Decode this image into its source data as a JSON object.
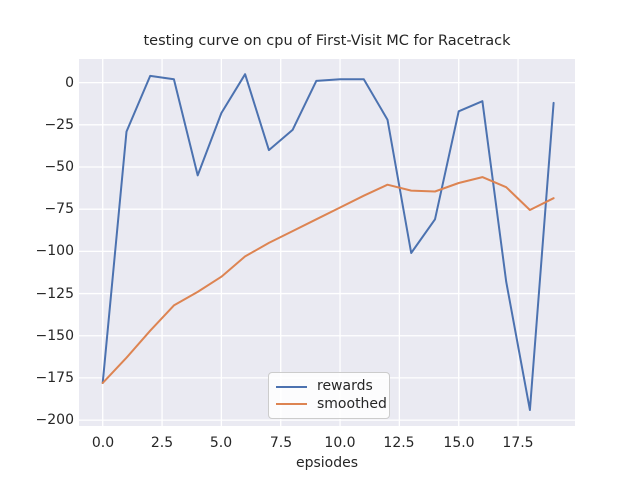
{
  "chart_data": {
    "type": "line",
    "title": "testing curve on cpu of First-Visit MC for Racetrack",
    "xlabel": "epsiodes",
    "ylabel": "",
    "x": [
      0,
      1,
      2,
      3,
      4,
      5,
      6,
      7,
      8,
      9,
      10,
      11,
      12,
      13,
      14,
      15,
      16,
      17,
      18,
      19
    ],
    "series": [
      {
        "name": "rewards",
        "color": "#4C72B0",
        "values": [
          -178,
          -29,
          4,
          2,
          -55,
          -18,
          5,
          -40,
          -28,
          1,
          2,
          2,
          -22,
          -101,
          -81,
          -17,
          -11,
          -118,
          -194,
          -12
        ]
      },
      {
        "name": "smoothed",
        "color": "#DD8452",
        "values": [
          -178,
          -163,
          -147,
          -132,
          -124,
          -115,
          -103,
          -95,
          -88,
          -81,
          -74,
          -67,
          -60.5,
          -64,
          -64.5,
          -59.5,
          -56,
          -62,
          -75.5,
          -68.5
        ]
      }
    ],
    "xlim": [
      -1.0,
      19.9
    ],
    "ylim": [
      -203.5,
      14
    ],
    "grid": true,
    "x_ticks": {
      "values": [
        0,
        2.5,
        5,
        7.5,
        10,
        12.5,
        15,
        17.5
      ],
      "labels": [
        "0.0",
        "2.5",
        "5.0",
        "7.5",
        "10.0",
        "12.5",
        "15.0",
        "17.5"
      ]
    },
    "y_ticks": {
      "values": [
        0,
        -25,
        -50,
        -75,
        -100,
        -125,
        -150,
        -175,
        -200
      ],
      "labels": [
        "0",
        "−25",
        "−50",
        "−75",
        "−100",
        "−125",
        "−150",
        "−175",
        "−200"
      ]
    },
    "legend": {
      "position": "lower center",
      "entries": [
        "rewards",
        "smoothed"
      ]
    },
    "colors": {
      "plot_background": "#EAEAF2",
      "grid": "#FFFFFF",
      "text": "#262626",
      "legend_border": "#CCCCCC"
    }
  }
}
